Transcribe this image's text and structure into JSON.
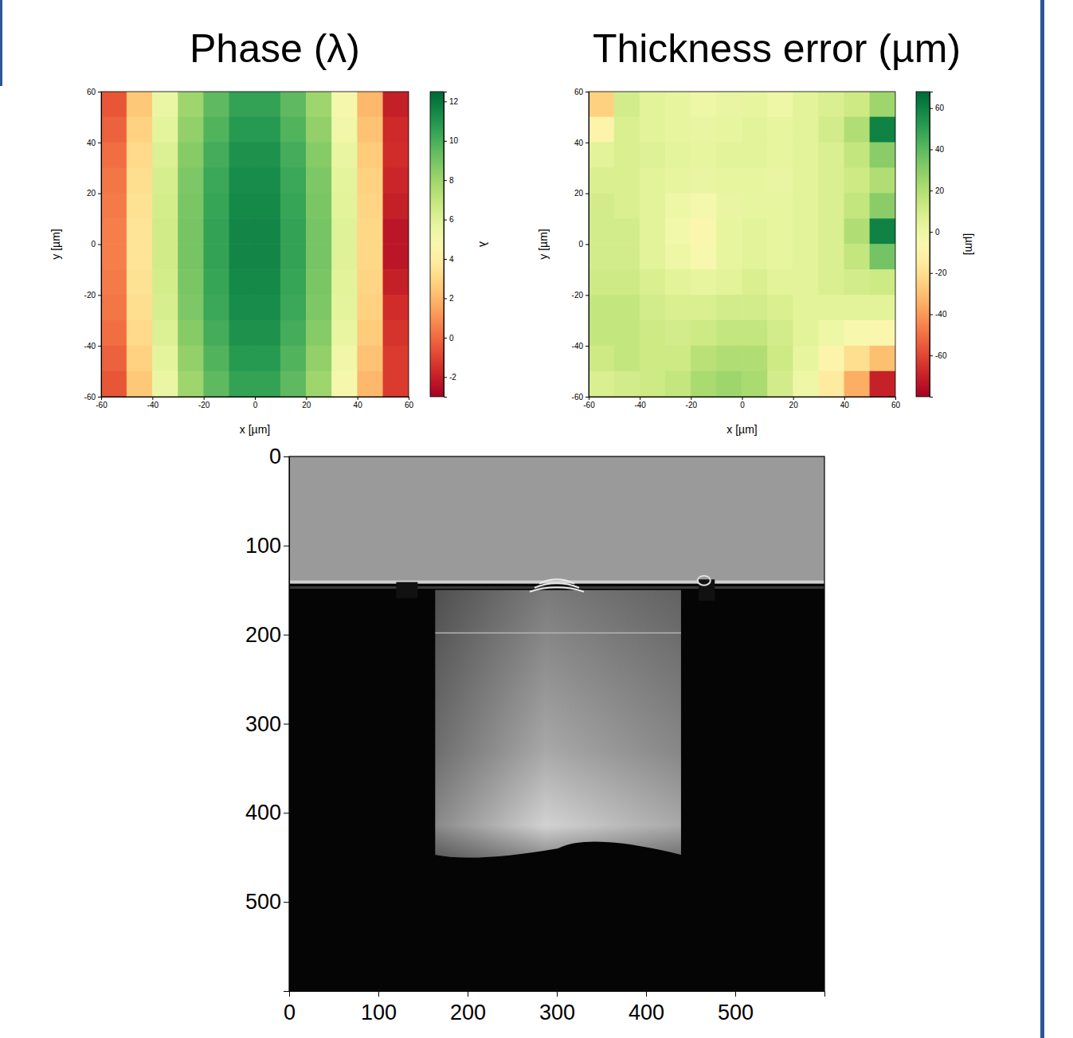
{
  "chart_data": [
    {
      "type": "heatmap",
      "title": "Phase (λ)",
      "xlabel": "x [µm]",
      "ylabel": "y [µm]",
      "color": "RdYlGn",
      "xlim": [
        -60,
        60
      ],
      "ylim": [
        -60,
        60
      ],
      "xticks": [
        -60,
        -40,
        -20,
        0,
        20,
        40,
        60
      ],
      "yticks": [
        -60,
        -40,
        -20,
        0,
        20,
        40,
        60
      ],
      "x": [
        -55,
        -45,
        -35,
        -25,
        -15,
        -5,
        5,
        15,
        25,
        35,
        45,
        55
      ],
      "y": [
        55,
        45,
        35,
        25,
        15,
        5,
        -5,
        -15,
        -25,
        -35,
        -45,
        -55
      ],
      "cells": [
        [
          -0.5,
          2.5,
          5.5,
          8,
          9.5,
          10.5,
          10.5,
          9.5,
          8,
          5,
          2,
          -2
        ],
        [
          -0.2,
          2.8,
          5.8,
          8.3,
          9.8,
          10.8,
          10.8,
          9.8,
          8.3,
          5.3,
          2.3,
          -1.7
        ],
        [
          0.1,
          3.1,
          6.1,
          8.6,
          10.1,
          11.1,
          11.1,
          10.1,
          8.6,
          5.6,
          2.6,
          -1.6
        ],
        [
          0.3,
          3.3,
          6.3,
          8.8,
          10.3,
          11.3,
          11.3,
          10.3,
          8.8,
          5.8,
          2.8,
          -1.8
        ],
        [
          0.4,
          3.4,
          6.4,
          8.9,
          10.4,
          11.4,
          11.4,
          10.4,
          8.9,
          5.9,
          2.9,
          -2
        ],
        [
          0.5,
          3.5,
          6.5,
          9,
          10.5,
          11.5,
          11.5,
          10.5,
          9,
          6,
          3,
          -2.3
        ],
        [
          0.5,
          3.5,
          6.5,
          9,
          10.5,
          11.5,
          11.5,
          10.5,
          9,
          6,
          3,
          -2.3
        ],
        [
          0.4,
          3.4,
          6.4,
          8.9,
          10.4,
          11.4,
          11.4,
          10.4,
          8.9,
          5.9,
          2.9,
          -2
        ],
        [
          0.3,
          3.3,
          6.3,
          8.8,
          10.3,
          11.3,
          11.3,
          10.3,
          8.8,
          5.8,
          2.8,
          -1.6
        ],
        [
          0.1,
          3.1,
          6.1,
          8.6,
          10.1,
          11.1,
          11.1,
          10.1,
          8.6,
          5.6,
          2.6,
          -1.4
        ],
        [
          -0.2,
          2.8,
          5.8,
          8.3,
          9.8,
          10.8,
          10.8,
          9.8,
          8.3,
          5.3,
          2.3,
          -1.2
        ],
        [
          -0.5,
          2.5,
          5.5,
          8,
          9.5,
          10.5,
          10.5,
          9.5,
          8,
          5,
          2,
          -1.2
        ]
      ],
      "colorbar": {
        "label": "λ",
        "range": [
          -3,
          12.5
        ],
        "ticks": [
          -2,
          0,
          2,
          4,
          6,
          8,
          10,
          12
        ]
      }
    },
    {
      "type": "heatmap",
      "title": "Thickness error (µm)",
      "xlabel": "x [µm]",
      "ylabel": "y [µm]",
      "color": "RdYlGn",
      "xlim": [
        -60,
        60
      ],
      "ylim": [
        -60,
        60
      ],
      "xticks": [
        -60,
        -40,
        -20,
        0,
        20,
        40,
        60
      ],
      "yticks": [
        -60,
        -40,
        -20,
        0,
        20,
        40,
        60
      ],
      "x": [
        -55,
        -45,
        -35,
        -25,
        -15,
        -5,
        5,
        15,
        25,
        35,
        45,
        55
      ],
      "y": [
        55,
        45,
        35,
        25,
        15,
        5,
        -5,
        -15,
        -25,
        -35,
        -45,
        -55
      ],
      "cells": [
        [
          -25,
          10,
          5,
          3,
          0,
          2,
          3,
          0,
          5,
          8,
          12,
          25
        ],
        [
          -10,
          8,
          5,
          3,
          2,
          3,
          5,
          3,
          5,
          10,
          20,
          60
        ],
        [
          5,
          8,
          6,
          4,
          3,
          5,
          5,
          3,
          5,
          8,
          15,
          30
        ],
        [
          8,
          8,
          5,
          3,
          2,
          3,
          3,
          2,
          5,
          8,
          12,
          20
        ],
        [
          10,
          8,
          5,
          0,
          -3,
          2,
          3,
          3,
          5,
          8,
          15,
          30
        ],
        [
          10,
          10,
          5,
          -2,
          -8,
          3,
          5,
          3,
          5,
          8,
          20,
          60
        ],
        [
          10,
          10,
          5,
          0,
          -5,
          3,
          5,
          3,
          5,
          8,
          15,
          35
        ],
        [
          12,
          12,
          8,
          5,
          3,
          5,
          8,
          5,
          5,
          8,
          10,
          12
        ],
        [
          15,
          15,
          10,
          8,
          8,
          10,
          10,
          8,
          5,
          5,
          5,
          5
        ],
        [
          15,
          15,
          12,
          10,
          12,
          15,
          15,
          10,
          5,
          0,
          -5,
          -8
        ],
        [
          12,
          15,
          12,
          12,
          18,
          20,
          20,
          12,
          3,
          -10,
          -20,
          -30
        ],
        [
          8,
          10,
          12,
          15,
          22,
          25,
          22,
          10,
          0,
          -15,
          -35,
          -70
        ]
      ],
      "colorbar": {
        "label": "[µm]",
        "range": [
          -80,
          68
        ],
        "ticks": [
          -60,
          -40,
          -20,
          0,
          20,
          40,
          60
        ]
      }
    },
    {
      "type": "image",
      "xlim": [
        0,
        600
      ],
      "ylim": [
        600,
        0
      ],
      "xticks": [
        0,
        100,
        200,
        300,
        400,
        500
      ],
      "yticks": [
        0,
        100,
        200,
        300,
        400,
        500
      ],
      "grid": false
    }
  ]
}
